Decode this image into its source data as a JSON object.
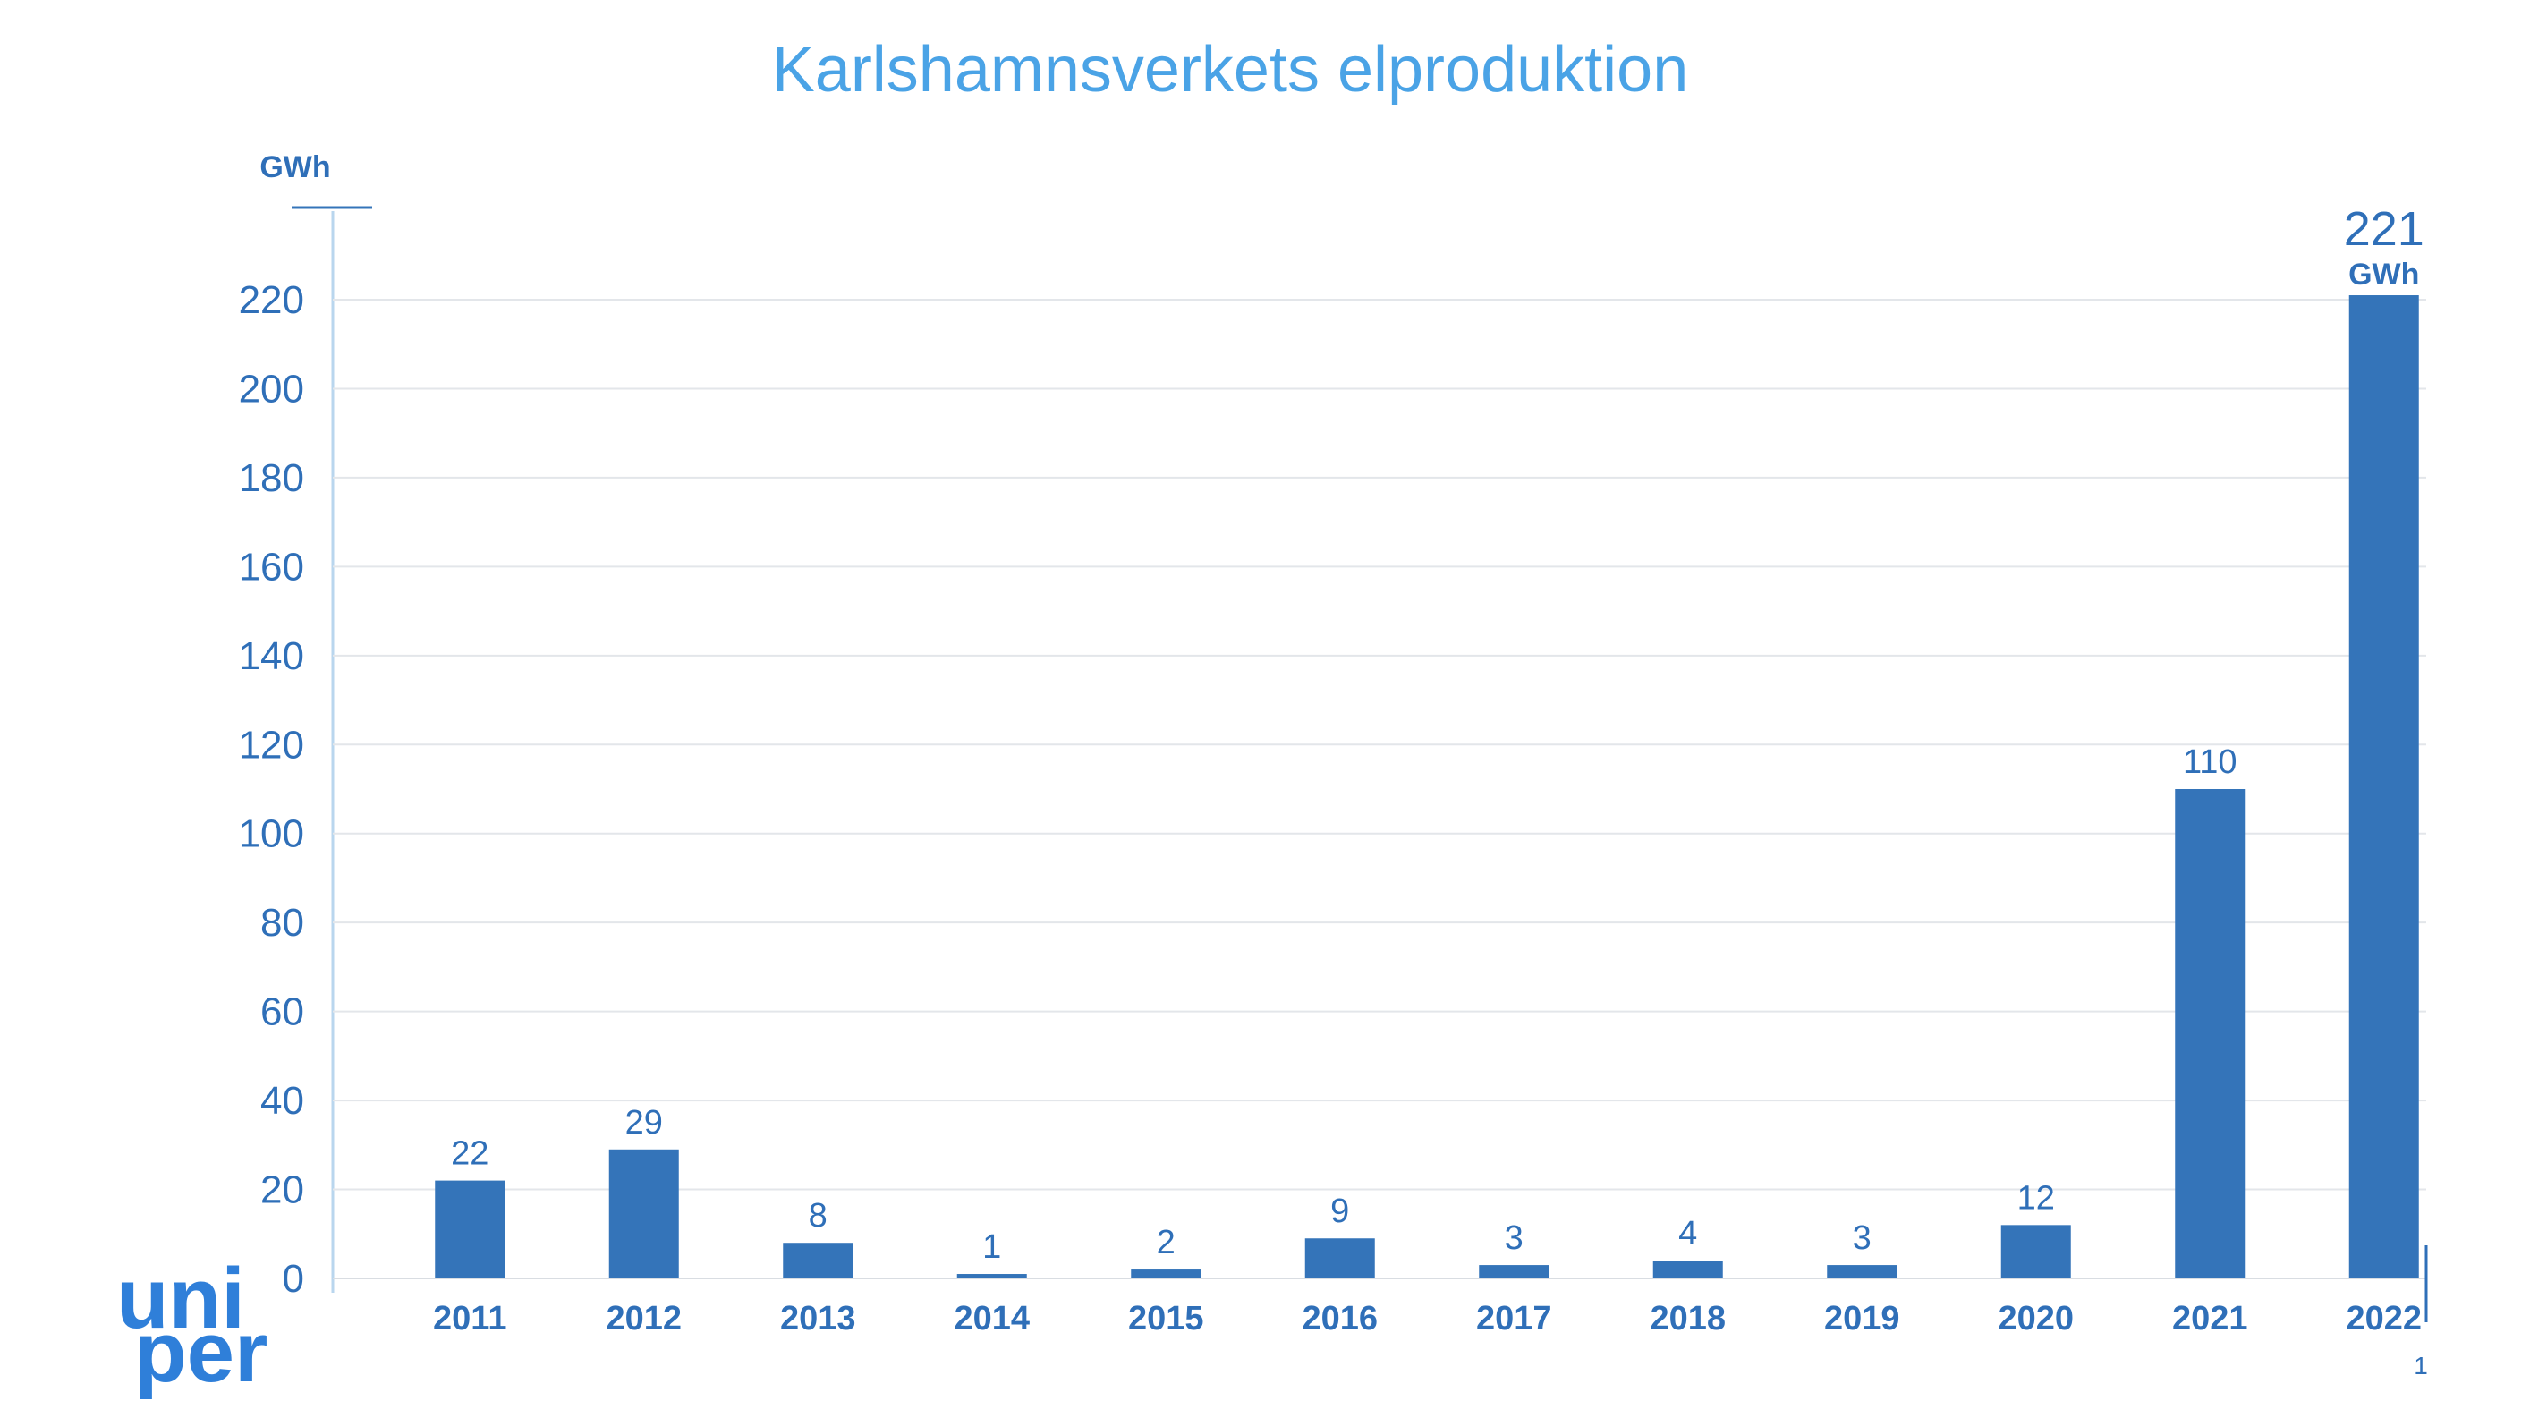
{
  "chart_data": {
    "type": "bar",
    "title": "Karlshamnsverkets elproduktion",
    "ylabel": "GWh",
    "ylim": [
      0,
      220
    ],
    "yticks": [
      0,
      20,
      40,
      60,
      80,
      100,
      120,
      140,
      160,
      180,
      200,
      220
    ],
    "grid": true,
    "categories": [
      "2011",
      "2012",
      "2013",
      "2014",
      "2015",
      "2016",
      "2017",
      "2018",
      "2019",
      "2020",
      "2021",
      "2022"
    ],
    "values": [
      22,
      29,
      8,
      1,
      2,
      9,
      3,
      4,
      3,
      12,
      110,
      221
    ],
    "data_labels": [
      "22",
      "29",
      "8",
      "1",
      "2",
      "9",
      "3",
      "4",
      "3",
      "12",
      "110",
      "221"
    ],
    "last_label_unit": "GWh",
    "bar_color": "#3474b9"
  },
  "logo": {
    "line1": "uni",
    "line2": "per"
  },
  "page_number": "1"
}
